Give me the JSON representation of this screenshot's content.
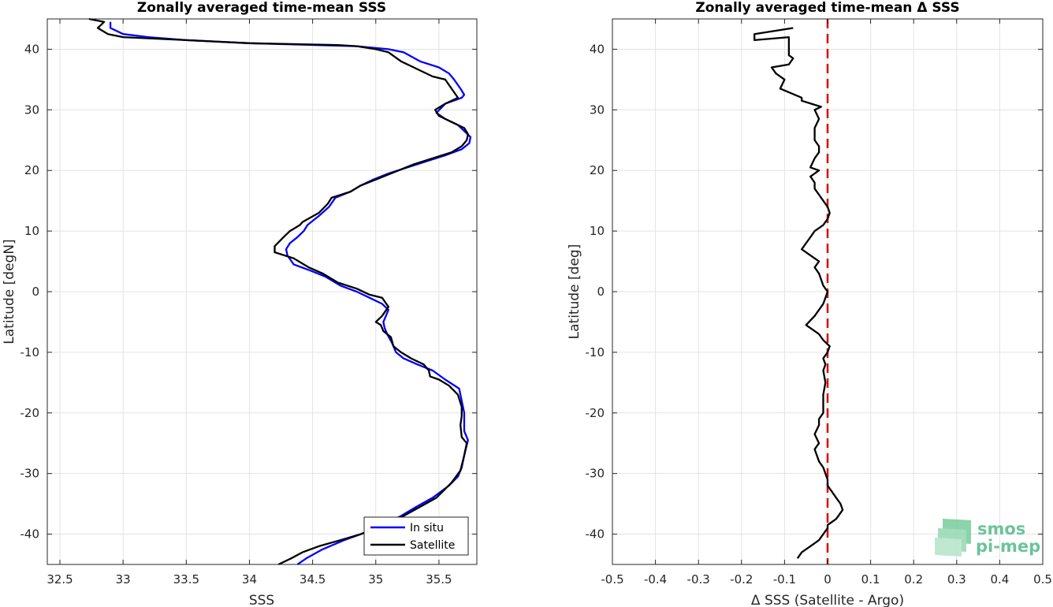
{
  "chart_data": [
    {
      "type": "line",
      "title": "Zonally averaged time-mean SSS",
      "xlabel": "SSS",
      "ylabel": "Latitude [degN]",
      "xlim": [
        32.4,
        35.8
      ],
      "ylim": [
        -45,
        45
      ],
      "xticks": [
        "32.5",
        "33",
        "33.5",
        "34",
        "34.5",
        "35",
        "35.5"
      ],
      "yticks": [
        "40",
        "30",
        "20",
        "10",
        "0",
        "-10",
        "-20",
        "-30",
        "-40"
      ],
      "grid": true,
      "legend_position": "bottom-right",
      "series": [
        {
          "name": "In situ",
          "color": "#0000ff",
          "points": [
            [
              34.38,
              -45
            ],
            [
              34.45,
              -44
            ],
            [
              34.58,
              -42.5
            ],
            [
              34.75,
              -41
            ],
            [
              34.95,
              -39.5
            ],
            [
              35.1,
              -38
            ],
            [
              35.2,
              -37
            ],
            [
              35.32,
              -35.5
            ],
            [
              35.45,
              -34
            ],
            [
              35.58,
              -32
            ],
            [
              35.65,
              -30.5
            ],
            [
              35.68,
              -29
            ],
            [
              35.7,
              -27
            ],
            [
              35.73,
              -24.5
            ],
            [
              35.7,
              -23
            ],
            [
              35.7,
              -21.5
            ],
            [
              35.7,
              -20
            ],
            [
              35.68,
              -18
            ],
            [
              35.66,
              -16
            ],
            [
              35.55,
              -14.5
            ],
            [
              35.45,
              -13
            ],
            [
              35.33,
              -12
            ],
            [
              35.22,
              -11
            ],
            [
              35.16,
              -10
            ],
            [
              35.13,
              -8.5
            ],
            [
              35.09,
              -7
            ],
            [
              35.07,
              -6
            ],
            [
              35.06,
              -5
            ],
            [
              35.08,
              -4
            ],
            [
              35.1,
              -3
            ],
            [
              35.05,
              -2
            ],
            [
              34.95,
              -1
            ],
            [
              34.85,
              0
            ],
            [
              34.72,
              1
            ],
            [
              34.6,
              2.5
            ],
            [
              34.48,
              3.5
            ],
            [
              34.35,
              4.5
            ],
            [
              34.3,
              6
            ],
            [
              34.29,
              7
            ],
            [
              34.32,
              8
            ],
            [
              34.38,
              9
            ],
            [
              34.43,
              10
            ],
            [
              34.46,
              11
            ],
            [
              34.55,
              12.5
            ],
            [
              34.63,
              14
            ],
            [
              34.68,
              15.5
            ],
            [
              34.8,
              16.5
            ],
            [
              34.88,
              17.5
            ],
            [
              34.98,
              18.5
            ],
            [
              35.1,
              19.5
            ],
            [
              35.25,
              20.5
            ],
            [
              35.4,
              21.5
            ],
            [
              35.55,
              22.5
            ],
            [
              35.68,
              23.5
            ],
            [
              35.74,
              24.5
            ],
            [
              35.75,
              25.5
            ],
            [
              35.7,
              26.5
            ],
            [
              35.65,
              27.5
            ],
            [
              35.55,
              28.5
            ],
            [
              35.48,
              29.5
            ],
            [
              35.55,
              31
            ],
            [
              35.68,
              32
            ],
            [
              35.7,
              32.5
            ],
            [
              35.67,
              33.5
            ],
            [
              35.62,
              35
            ],
            [
              35.58,
              36
            ],
            [
              35.5,
              37
            ],
            [
              35.35,
              38
            ],
            [
              35.22,
              39.5
            ],
            [
              35.1,
              40
            ],
            [
              34.85,
              40.5
            ],
            [
              34.0,
              41
            ],
            [
              33.5,
              41.5
            ],
            [
              33.2,
              42
            ],
            [
              33.0,
              42.5
            ],
            [
              32.9,
              43.5
            ],
            [
              32.9,
              44.5
            ]
          ]
        },
        {
          "name": "Satellite",
          "color": "#000000",
          "points": [
            [
              34.23,
              -45
            ],
            [
              34.33,
              -44
            ],
            [
              34.42,
              -43
            ],
            [
              34.55,
              -42
            ],
            [
              34.72,
              -41
            ],
            [
              34.88,
              -40
            ],
            [
              35.0,
              -39
            ],
            [
              35.12,
              -38
            ],
            [
              35.22,
              -37
            ],
            [
              35.35,
              -35.5
            ],
            [
              35.48,
              -34
            ],
            [
              35.6,
              -31.5
            ],
            [
              35.67,
              -29.5
            ],
            [
              35.7,
              -27
            ],
            [
              35.72,
              -25
            ],
            [
              35.68,
              -24
            ],
            [
              35.67,
              -22
            ],
            [
              35.68,
              -20.5
            ],
            [
              35.68,
              -19
            ],
            [
              35.65,
              -17
            ],
            [
              35.58,
              -15.5
            ],
            [
              35.5,
              -14.5
            ],
            [
              35.43,
              -14
            ],
            [
              35.42,
              -13
            ],
            [
              35.38,
              -12
            ],
            [
              35.28,
              -11
            ],
            [
              35.2,
              -10
            ],
            [
              35.14,
              -9
            ],
            [
              35.12,
              -7.5
            ],
            [
              35.06,
              -6.5
            ],
            [
              35.04,
              -5.5
            ],
            [
              35.0,
              -5
            ],
            [
              35.05,
              -4
            ],
            [
              35.1,
              -2.5
            ],
            [
              35.05,
              -1
            ],
            [
              34.95,
              -0.5
            ],
            [
              34.85,
              0.5
            ],
            [
              34.7,
              1.5
            ],
            [
              34.58,
              3
            ],
            [
              34.47,
              4
            ],
            [
              34.35,
              5.5
            ],
            [
              34.2,
              6.5
            ],
            [
              34.2,
              7.5
            ],
            [
              34.27,
              9
            ],
            [
              34.32,
              10
            ],
            [
              34.4,
              11
            ],
            [
              34.42,
              11.5
            ],
            [
              34.55,
              13
            ],
            [
              34.62,
              14.5
            ],
            [
              34.65,
              15.5
            ],
            [
              34.8,
              16.5
            ],
            [
              34.88,
              17.5
            ],
            [
              35.0,
              18.5
            ],
            [
              35.12,
              19.5
            ],
            [
              35.3,
              21
            ],
            [
              35.45,
              22
            ],
            [
              35.6,
              23
            ],
            [
              35.68,
              24
            ],
            [
              35.72,
              25
            ],
            [
              35.73,
              26
            ],
            [
              35.7,
              27
            ],
            [
              35.6,
              28
            ],
            [
              35.5,
              29
            ],
            [
              35.47,
              30
            ],
            [
              35.55,
              31
            ],
            [
              35.65,
              32
            ],
            [
              35.6,
              33.5
            ],
            [
              35.55,
              35
            ],
            [
              35.45,
              35.5
            ],
            [
              35.3,
              37
            ],
            [
              35.2,
              38
            ],
            [
              35.1,
              39.5
            ],
            [
              35.0,
              40
            ],
            [
              34.85,
              40.5
            ],
            [
              34.7,
              40.7
            ],
            [
              34.0,
              41
            ],
            [
              33.5,
              41.5
            ],
            [
              33.0,
              42
            ],
            [
              32.88,
              42.5
            ],
            [
              32.8,
              43.5
            ],
            [
              32.85,
              44.5
            ],
            [
              32.73,
              45
            ]
          ]
        }
      ]
    },
    {
      "type": "line",
      "title": "Zonally averaged time-mean Δ SSS",
      "xlabel": "Δ SSS (Satellite - Argo)",
      "ylabel": "Latitude [deg]",
      "xlim": [
        -0.5,
        0.5
      ],
      "ylim": [
        -45,
        45
      ],
      "xticks": [
        "-0.5",
        "-0.4",
        "-0.3",
        "-0.2",
        "-0.1",
        "0",
        "0.1",
        "0.2",
        "0.3",
        "0.4",
        "0.5"
      ],
      "yticks": [
        "40",
        "30",
        "20",
        "10",
        "0",
        "-10",
        "-20",
        "-30",
        "-40"
      ],
      "grid": true,
      "zero_line": {
        "x": 0,
        "color": "#e00000",
        "style": "dashed"
      },
      "series": [
        {
          "color": "#000000",
          "points": [
            [
              -0.07,
              -44
            ],
            [
              -0.06,
              -43
            ],
            [
              -0.04,
              -42
            ],
            [
              -0.02,
              -41
            ],
            [
              -0.01,
              -40
            ],
            [
              0.0,
              -39
            ],
            [
              0.0,
              -38.5
            ],
            [
              0.02,
              -37.5
            ],
            [
              0.035,
              -36
            ],
            [
              0.03,
              -35
            ],
            [
              0.02,
              -34
            ],
            [
              0.01,
              -33
            ],
            [
              0.0,
              -32
            ],
            [
              0.0,
              -31
            ],
            [
              -0.01,
              -29
            ],
            [
              -0.02,
              -28
            ],
            [
              -0.03,
              -26
            ],
            [
              -0.02,
              -25
            ],
            [
              -0.03,
              -23.5
            ],
            [
              -0.02,
              -22
            ],
            [
              -0.02,
              -21
            ],
            [
              -0.01,
              -20
            ],
            [
              -0.01,
              -18
            ],
            [
              -0.01,
              -17
            ],
            [
              -0.005,
              -15
            ],
            [
              -0.01,
              -13
            ],
            [
              -0.005,
              -12
            ],
            [
              -0.01,
              -11
            ],
            [
              0.0,
              -10
            ],
            [
              0.005,
              -9
            ],
            [
              -0.01,
              -8
            ],
            [
              -0.02,
              -7
            ],
            [
              -0.05,
              -5.5
            ],
            [
              -0.03,
              -4
            ],
            [
              -0.01,
              -2
            ],
            [
              -0.005,
              -1
            ],
            [
              0.0,
              0
            ],
            [
              -0.01,
              1
            ],
            [
              -0.02,
              3
            ],
            [
              -0.03,
              4
            ],
            [
              -0.02,
              5
            ],
            [
              -0.04,
              6
            ],
            [
              -0.06,
              7
            ],
            [
              -0.05,
              8
            ],
            [
              -0.04,
              9
            ],
            [
              -0.03,
              10
            ],
            [
              -0.02,
              10.5
            ],
            [
              -0.01,
              11
            ],
            [
              0.0,
              12
            ],
            [
              0.005,
              13
            ],
            [
              0.0,
              14
            ],
            [
              -0.02,
              16
            ],
            [
              -0.03,
              17
            ],
            [
              -0.03,
              18
            ],
            [
              -0.04,
              19
            ],
            [
              -0.02,
              20
            ],
            [
              -0.04,
              20.5
            ],
            [
              -0.03,
              22
            ],
            [
              -0.02,
              23
            ],
            [
              -0.02,
              24
            ],
            [
              -0.03,
              25
            ],
            [
              -0.03,
              27
            ],
            [
              -0.02,
              28.5
            ],
            [
              -0.03,
              30
            ],
            [
              -0.015,
              30.5
            ],
            [
              -0.06,
              31.5
            ],
            [
              -0.06,
              32
            ],
            [
              -0.11,
              33.5
            ],
            [
              -0.1,
              35
            ],
            [
              -0.12,
              36
            ],
            [
              -0.13,
              37
            ],
            [
              -0.09,
              37.5
            ],
            [
              -0.08,
              38.5
            ],
            [
              -0.09,
              39
            ],
            [
              -0.09,
              40
            ],
            [
              -0.09,
              41
            ],
            [
              -0.09,
              42
            ],
            [
              -0.17,
              41.5
            ],
            [
              -0.17,
              42.5
            ],
            [
              -0.08,
              43.5
            ]
          ]
        }
      ]
    }
  ],
  "legend": {
    "items": [
      {
        "label": "In situ",
        "color": "#0000ff"
      },
      {
        "label": "Satellite",
        "color": "#000000"
      }
    ]
  },
  "logo": {
    "line1": "smos",
    "line2": "pi-mep"
  }
}
